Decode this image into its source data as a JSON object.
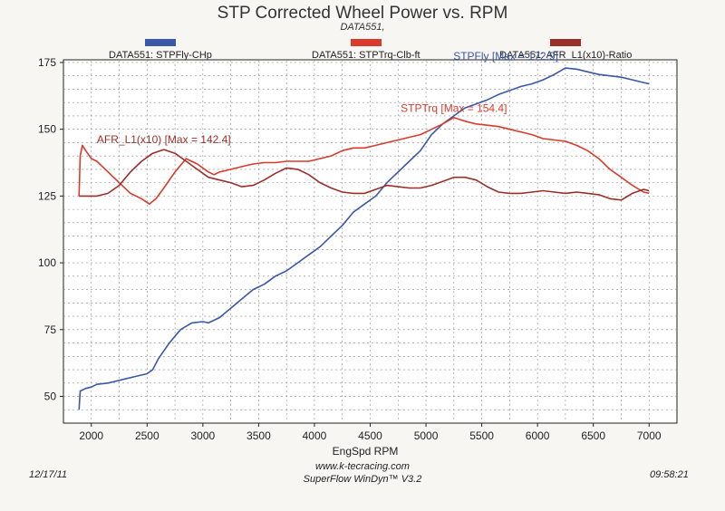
{
  "chart_data": {
    "type": "line",
    "title": "STP Corrected Wheel Power vs. RPM",
    "subtitle": "DATA551,",
    "xlabel": "EngSpd RPM",
    "ylabel": "",
    "xlim": [
      1750,
      7250
    ],
    "ylim": [
      40,
      176
    ],
    "xticks": [
      2000,
      2500,
      3000,
      3500,
      4000,
      4500,
      5000,
      5500,
      6000,
      6500,
      7000
    ],
    "yticks": [
      50,
      75,
      100,
      125,
      150,
      175
    ],
    "grid": true,
    "series": [
      {
        "name": "DATA551: STPFly-CHp",
        "color": "#3a57a8",
        "annotation": "STPFly [Max = 172.9]",
        "points": [
          [
            1890,
            45
          ],
          [
            1900,
            52
          ],
          [
            1950,
            53
          ],
          [
            2000,
            53.5
          ],
          [
            2050,
            54.5
          ],
          [
            2150,
            55
          ],
          [
            2300,
            56.5
          ],
          [
            2400,
            57.5
          ],
          [
            2500,
            58.5
          ],
          [
            2550,
            60
          ],
          [
            2600,
            64
          ],
          [
            2700,
            70
          ],
          [
            2800,
            75
          ],
          [
            2900,
            77.5
          ],
          [
            3000,
            78
          ],
          [
            3050,
            77.5
          ],
          [
            3150,
            79.5
          ],
          [
            3250,
            83
          ],
          [
            3350,
            86.5
          ],
          [
            3450,
            90
          ],
          [
            3550,
            92
          ],
          [
            3650,
            95
          ],
          [
            3750,
            97
          ],
          [
            3850,
            100
          ],
          [
            3950,
            103
          ],
          [
            4050,
            106
          ],
          [
            4150,
            110
          ],
          [
            4250,
            114
          ],
          [
            4350,
            119
          ],
          [
            4450,
            122
          ],
          [
            4550,
            125
          ],
          [
            4650,
            130
          ],
          [
            4750,
            134
          ],
          [
            4850,
            138
          ],
          [
            4950,
            142
          ],
          [
            5050,
            148
          ],
          [
            5150,
            152
          ],
          [
            5250,
            155
          ],
          [
            5350,
            158
          ],
          [
            5450,
            159.5
          ],
          [
            5550,
            161
          ],
          [
            5650,
            163
          ],
          [
            5750,
            164.5
          ],
          [
            5850,
            166
          ],
          [
            5950,
            167
          ],
          [
            6050,
            168.5
          ],
          [
            6150,
            170.5
          ],
          [
            6250,
            172.9
          ],
          [
            6350,
            172.5
          ],
          [
            6450,
            171.5
          ],
          [
            6550,
            170.5
          ],
          [
            6650,
            170
          ],
          [
            6750,
            169.5
          ],
          [
            6850,
            168.5
          ],
          [
            6950,
            167.5
          ],
          [
            7000,
            167
          ]
        ]
      },
      {
        "name": "DATA551: STPTrq-Clb-ft",
        "color": "#d93a2b",
        "annotation": "STPTrq [Max = 154.4]",
        "points": [
          [
            1890,
            125
          ],
          [
            1900,
            140
          ],
          [
            1920,
            144
          ],
          [
            1950,
            142
          ],
          [
            2000,
            139
          ],
          [
            2050,
            138
          ],
          [
            2100,
            136
          ],
          [
            2150,
            134
          ],
          [
            2250,
            130
          ],
          [
            2350,
            126
          ],
          [
            2450,
            124
          ],
          [
            2520,
            122
          ],
          [
            2580,
            124
          ],
          [
            2650,
            128
          ],
          [
            2750,
            134
          ],
          [
            2850,
            139
          ],
          [
            2950,
            137
          ],
          [
            3050,
            134
          ],
          [
            3100,
            133
          ],
          [
            3150,
            134
          ],
          [
            3250,
            135
          ],
          [
            3350,
            136
          ],
          [
            3450,
            137
          ],
          [
            3550,
            137.5
          ],
          [
            3650,
            137.5
          ],
          [
            3750,
            138
          ],
          [
            3850,
            138
          ],
          [
            3950,
            138
          ],
          [
            4050,
            139
          ],
          [
            4150,
            140
          ],
          [
            4250,
            142
          ],
          [
            4350,
            143
          ],
          [
            4450,
            143
          ],
          [
            4550,
            144
          ],
          [
            4650,
            145
          ],
          [
            4750,
            146
          ],
          [
            4850,
            147
          ],
          [
            4950,
            148
          ],
          [
            5050,
            150
          ],
          [
            5150,
            152
          ],
          [
            5250,
            154.4
          ],
          [
            5350,
            153
          ],
          [
            5450,
            152
          ],
          [
            5550,
            151.5
          ],
          [
            5650,
            151
          ],
          [
            5750,
            150
          ],
          [
            5850,
            149
          ],
          [
            5950,
            148
          ],
          [
            6050,
            146.5
          ],
          [
            6150,
            146
          ],
          [
            6250,
            145.5
          ],
          [
            6350,
            144
          ],
          [
            6450,
            142
          ],
          [
            6550,
            139
          ],
          [
            6650,
            135
          ],
          [
            6750,
            132
          ],
          [
            6850,
            129
          ],
          [
            6950,
            126.5
          ],
          [
            7000,
            126
          ]
        ]
      },
      {
        "name": "DATA551: AFR_L1(x10)-Ratio",
        "color": "#9b2f2a",
        "annotation": "AFR_L1(x10) [Max = 142.4]",
        "points": [
          [
            1890,
            125
          ],
          [
            1950,
            125
          ],
          [
            2050,
            125
          ],
          [
            2150,
            126
          ],
          [
            2250,
            129
          ],
          [
            2350,
            134
          ],
          [
            2450,
            138
          ],
          [
            2550,
            141
          ],
          [
            2650,
            142.4
          ],
          [
            2750,
            141
          ],
          [
            2850,
            138
          ],
          [
            2950,
            135
          ],
          [
            3050,
            132
          ],
          [
            3150,
            131
          ],
          [
            3250,
            130
          ],
          [
            3350,
            128.5
          ],
          [
            3450,
            129
          ],
          [
            3550,
            131
          ],
          [
            3650,
            133.5
          ],
          [
            3750,
            135.5
          ],
          [
            3850,
            135
          ],
          [
            3950,
            133
          ],
          [
            4050,
            130
          ],
          [
            4150,
            128
          ],
          [
            4250,
            126.5
          ],
          [
            4350,
            126
          ],
          [
            4450,
            126
          ],
          [
            4550,
            127.5
          ],
          [
            4650,
            129
          ],
          [
            4750,
            128.5
          ],
          [
            4850,
            128
          ],
          [
            4950,
            128
          ],
          [
            5050,
            129
          ],
          [
            5150,
            130.5
          ],
          [
            5250,
            132
          ],
          [
            5350,
            132
          ],
          [
            5450,
            131
          ],
          [
            5550,
            128.5
          ],
          [
            5650,
            126.5
          ],
          [
            5750,
            126
          ],
          [
            5850,
            126
          ],
          [
            5950,
            126.5
          ],
          [
            6050,
            127
          ],
          [
            6150,
            126.5
          ],
          [
            6250,
            126
          ],
          [
            6350,
            126.5
          ],
          [
            6450,
            126
          ],
          [
            6550,
            125.5
          ],
          [
            6650,
            124
          ],
          [
            6750,
            123.5
          ],
          [
            6850,
            126
          ],
          [
            6950,
            127.5
          ],
          [
            7000,
            127
          ]
        ]
      }
    ]
  },
  "footer": {
    "date": "12/17/11",
    "time": "09:58:21",
    "website": "www.k-tecracing.com",
    "software": "SuperFlow WinDyn™ V3.2"
  }
}
